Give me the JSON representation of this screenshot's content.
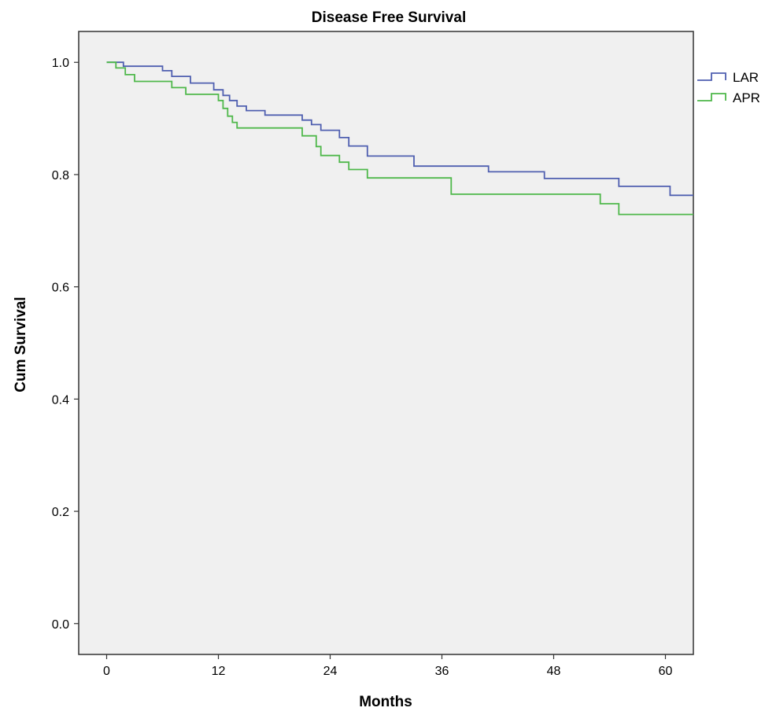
{
  "chart_data": {
    "type": "line",
    "title": "Disease Free Survival",
    "xlabel": "Months",
    "ylabel": "Cum Survival",
    "xlim": [
      -3,
      63
    ],
    "ylim": [
      -0.055,
      1.055
    ],
    "xticks": [
      0,
      12,
      24,
      36,
      48,
      60
    ],
    "yticks": [
      0.0,
      0.2,
      0.4,
      0.6,
      0.8,
      1.0
    ],
    "xtick_labels": [
      "0",
      "12",
      "24",
      "36",
      "48",
      "60"
    ],
    "ytick_labels": [
      "0.0",
      "0.2",
      "0.4",
      "0.6",
      "0.8",
      "1.0"
    ],
    "grid": false,
    "legend_position": "right",
    "step": true,
    "series": [
      {
        "name": "LAR",
        "color": "#4f5fb0",
        "x": [
          0,
          1.8,
          6,
          7,
          9,
          11.5,
          12.5,
          13.2,
          14,
          15,
          17,
          21,
          22,
          23,
          25,
          26,
          28,
          33,
          41,
          47,
          55,
          60.5,
          63
        ],
        "y": [
          1.0,
          0.993,
          0.985,
          0.975,
          0.963,
          0.951,
          0.941,
          0.932,
          0.922,
          0.914,
          0.906,
          0.897,
          0.889,
          0.879,
          0.866,
          0.851,
          0.833,
          0.815,
          0.805,
          0.793,
          0.779,
          0.763,
          0.763
        ]
      },
      {
        "name": "APR",
        "color": "#4fb84b",
        "x": [
          0,
          1,
          2,
          3,
          7,
          8.5,
          12,
          12.5,
          13,
          13.5,
          14,
          21,
          22.5,
          23,
          25,
          26,
          28,
          37,
          53,
          55,
          63
        ],
        "y": [
          1.0,
          0.99,
          0.978,
          0.966,
          0.955,
          0.943,
          0.932,
          0.918,
          0.904,
          0.893,
          0.883,
          0.869,
          0.85,
          0.834,
          0.822,
          0.809,
          0.794,
          0.765,
          0.748,
          0.729,
          0.729
        ]
      }
    ]
  }
}
